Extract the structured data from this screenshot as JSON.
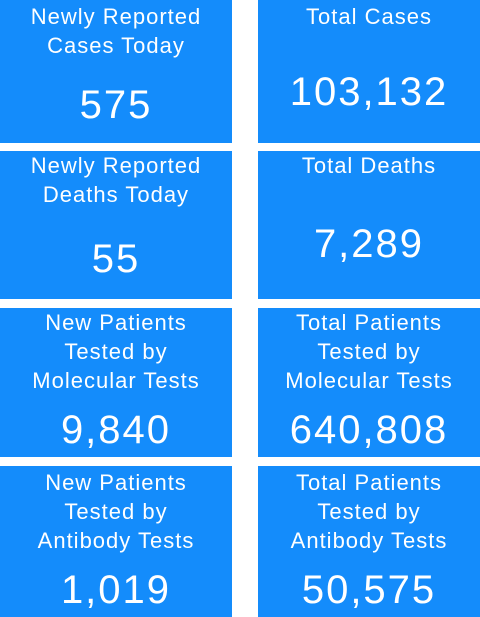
{
  "tiles": [
    {
      "label_lines": [
        "Newly Reported",
        "Cases Today"
      ],
      "value": "575"
    },
    {
      "label_lines": [
        "Total Cases"
      ],
      "value": "103,132"
    },
    {
      "label_lines": [
        "Newly Reported",
        "Deaths Today"
      ],
      "value": "55"
    },
    {
      "label_lines": [
        "Total Deaths"
      ],
      "value": "7,289"
    },
    {
      "label_lines": [
        "New Patients",
        "Tested by",
        "Molecular Tests"
      ],
      "value": "9,840"
    },
    {
      "label_lines": [
        "Total Patients",
        "Tested by",
        "Molecular Tests"
      ],
      "value": "640,808"
    },
    {
      "label_lines": [
        "New Patients",
        "Tested by",
        "Antibody Tests"
      ],
      "value": "1,019"
    },
    {
      "label_lines": [
        "Total Patients",
        "Tested by",
        "Antibody Tests"
      ],
      "value": "50,575"
    }
  ]
}
